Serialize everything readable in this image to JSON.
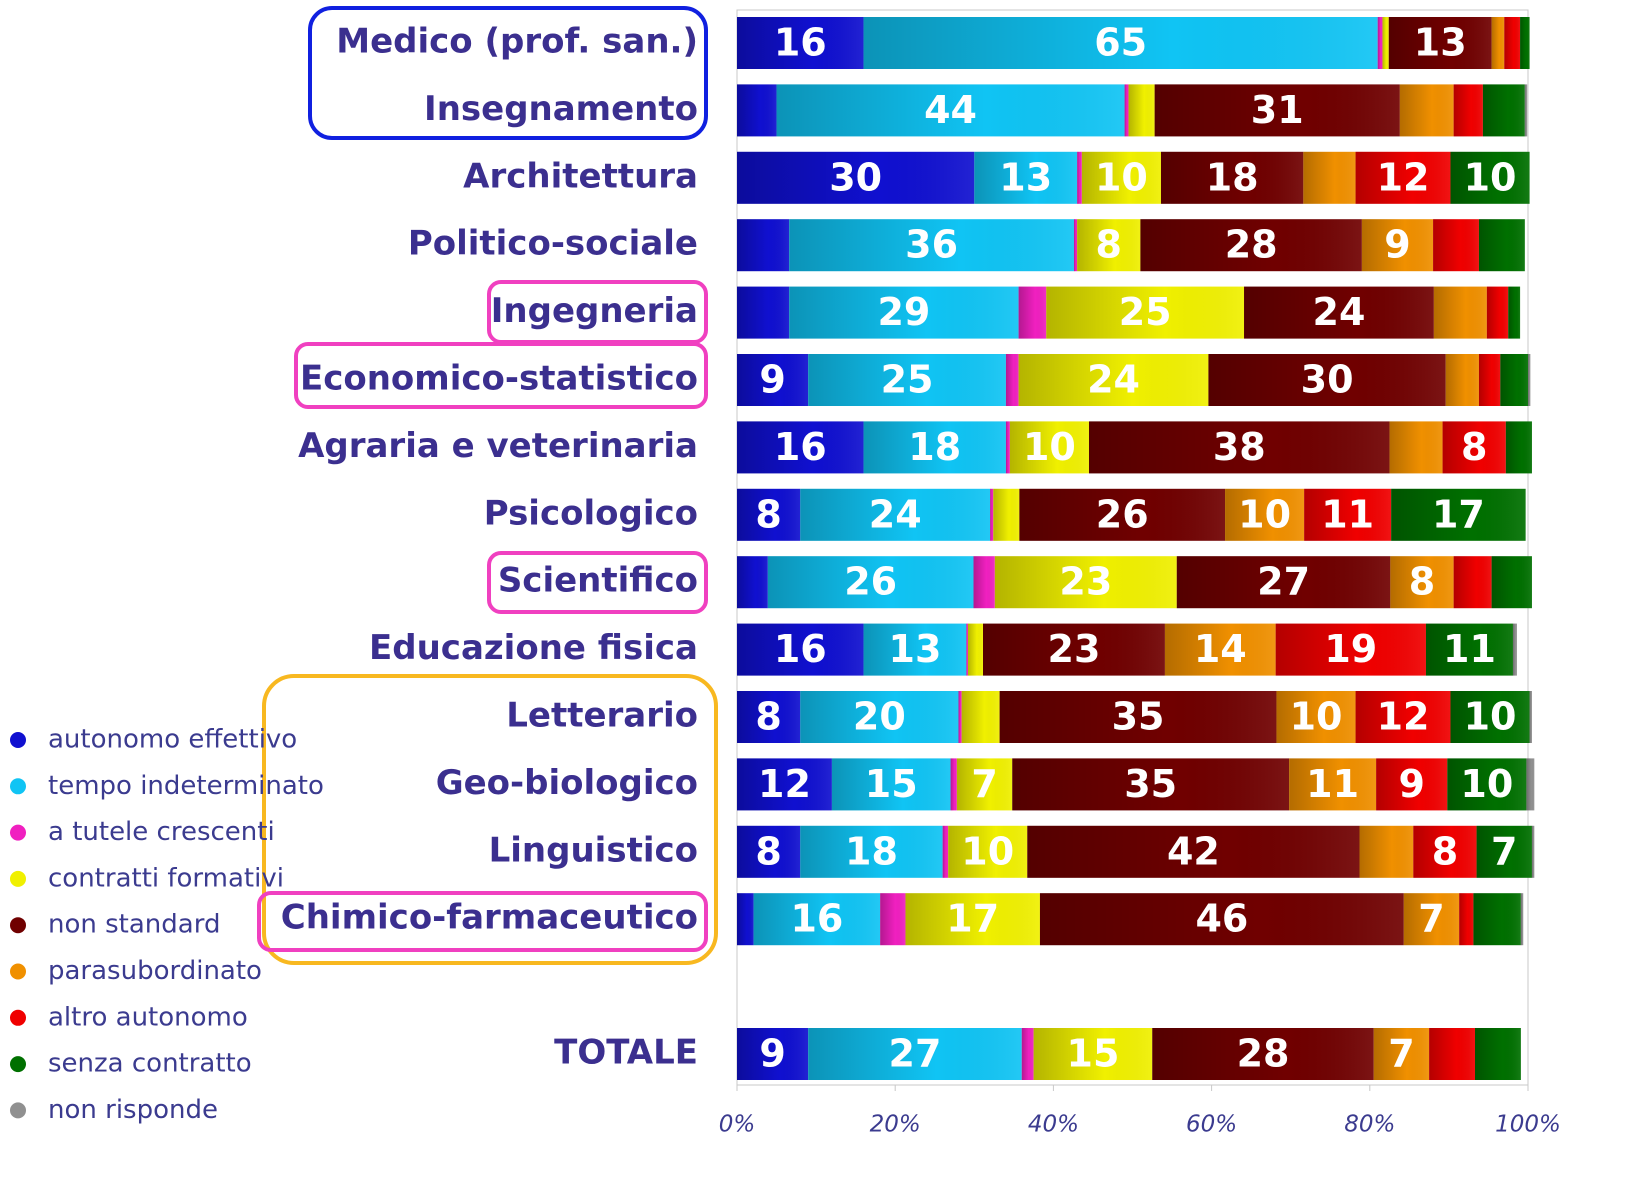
{
  "chart_data": {
    "type": "stacked_bar_horizontal",
    "categories": [
      "Medico (prof. san.)",
      "Insegnamento",
      "Architettura",
      "Politico-sociale",
      "Ingegneria",
      "Economico-statistico",
      "Agraria e veterinaria",
      "Psicologico",
      "Scientifico",
      "Educazione fisica",
      "Letterario",
      "Geo-biologico",
      "Linguistico",
      "Chimico-farmaceutico",
      null,
      "TOTALE"
    ],
    "series": [
      {
        "name": "autonomo effettivo",
        "color": "#1010d0",
        "values": [
          16,
          5,
          30,
          6.6,
          6.6,
          9,
          16,
          8,
          3.9,
          16,
          8,
          12,
          8,
          2.1,
          null,
          9
        ]
      },
      {
        "name": "tempo indeterminato",
        "color": "#10c4f4",
        "values": [
          65,
          44,
          13,
          36,
          29,
          25,
          18,
          24,
          26,
          13,
          20,
          15,
          18,
          16,
          null,
          27
        ]
      },
      {
        "name": "a tutele crescenti",
        "color": "#f020c0",
        "values": [
          0.6,
          0.5,
          0.6,
          0.4,
          3.5,
          1.6,
          0.5,
          0.4,
          2.7,
          0.2,
          0.4,
          0.8,
          0.7,
          3.2,
          null,
          1.5
        ]
      },
      {
        "name": "contratti formativi",
        "color": "#f0f000",
        "values": [
          0.8,
          3.3,
          10,
          8,
          25,
          24,
          10,
          3.3,
          23,
          1.9,
          4.8,
          7,
          10,
          17,
          null,
          15
        ]
      },
      {
        "name": "non standard",
        "color": "#700000",
        "values": [
          13,
          31,
          18,
          28,
          24,
          30,
          38,
          26,
          27,
          23,
          35,
          35,
          42,
          46,
          null,
          28
        ]
      },
      {
        "name": "parasubordinato",
        "color": "#f09000",
        "values": [
          1.6,
          6.8,
          6.6,
          9,
          6.7,
          4.2,
          6.7,
          10,
          8,
          14,
          10,
          11,
          6.8,
          7,
          null,
          7
        ]
      },
      {
        "name": "altro autonomo",
        "color": "#f00000",
        "values": [
          2,
          3.7,
          12,
          5.8,
          2.7,
          2.7,
          8,
          11,
          4.8,
          19,
          12,
          9,
          8,
          1.8,
          null,
          5.8
        ]
      },
      {
        "name": "senza contratto",
        "color": "#007000",
        "values": [
          1.2,
          5.3,
          10,
          5.8,
          1.5,
          3.5,
          3.3,
          17,
          5.1,
          11,
          10,
          10,
          7,
          6,
          null,
          5.8
        ]
      },
      {
        "name": "non risponde",
        "color": "#909090",
        "values": [
          0,
          0.3,
          0,
          0,
          0,
          0.3,
          0,
          0,
          0,
          0.5,
          0.3,
          1,
          0.3,
          0.3,
          null,
          0
        ]
      }
    ],
    "xlim": [
      0,
      100
    ],
    "xticks": [
      {
        "value": 0,
        "label": "0%"
      },
      {
        "value": 20,
        "label": "20%"
      },
      {
        "value": 40,
        "label": "40%"
      },
      {
        "value": 60,
        "label": "60%"
      },
      {
        "value": 80,
        "label": "80%"
      },
      {
        "value": 100,
        "label": "100%"
      }
    ],
    "legend": "left"
  }
}
